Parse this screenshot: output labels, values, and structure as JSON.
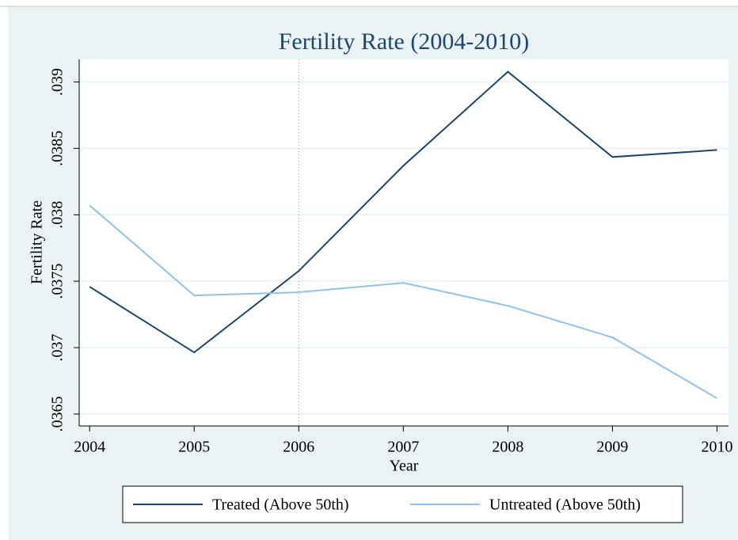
{
  "chart_data": {
    "type": "line",
    "title": "Fertility Rate (2004-2010)",
    "x_label": "Year",
    "y_label": "Fertility Rate",
    "x": [
      2004,
      2005,
      2006,
      2007,
      2008,
      2009,
      2010
    ],
    "series": [
      {
        "name": "Treated (Above 50th)",
        "color": "#1a476f",
        "values": [
          0.037458,
          0.036964,
          0.037577,
          0.038369,
          0.039077,
          0.038435,
          0.038488
        ]
      },
      {
        "name": "Untreated (Above 50th)",
        "color": "#90c3e8",
        "values": [
          0.038071,
          0.037393,
          0.037417,
          0.037488,
          0.037315,
          0.037077,
          0.036619
        ]
      }
    ],
    "xlim": [
      2003.9,
      2010.11
    ],
    "xticks": [
      2004,
      2005,
      2006,
      2007,
      2008,
      2009,
      2010
    ],
    "ylim": [
      0.03641,
      0.03917
    ],
    "yticks": [
      {
        "value": 0.0365,
        "label": ".0365"
      },
      {
        "value": 0.037,
        "label": ".037"
      },
      {
        "value": 0.0375,
        "label": ".0375"
      },
      {
        "value": 0.038,
        "label": ".038"
      },
      {
        "value": 0.0385,
        "label": ".0385"
      },
      {
        "value": 0.039,
        "label": ".039"
      }
    ],
    "xline": 2006,
    "grid": true,
    "legend": "bottom"
  }
}
